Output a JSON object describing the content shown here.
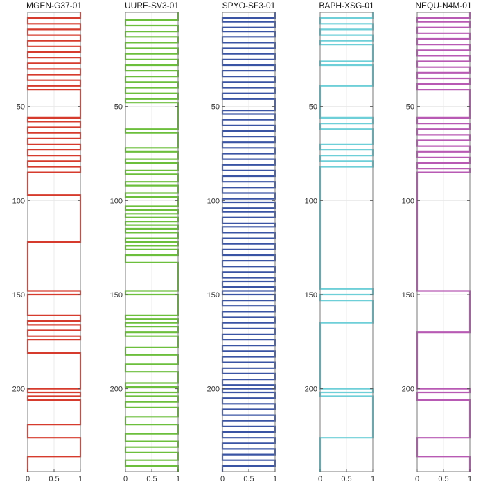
{
  "chart_data": [
    {
      "type": "line",
      "title": "MGEN-G37-01",
      "color": "#d63b2d",
      "xlim": [
        0,
        1
      ],
      "ylim": [
        0,
        244
      ],
      "y_inverted": true,
      "xticks": [
        "0",
        "0.5",
        "1"
      ],
      "yticks": [
        "50",
        "100",
        "150",
        "200"
      ],
      "segments": [
        {
          "x": 0,
          "y0": 0,
          "y1": 10
        },
        {
          "x": 0,
          "y0": 10,
          "y1": 35
        },
        {
          "x": 0,
          "y0": 35,
          "y1": 56
        },
        {
          "x": 0,
          "y0": 56,
          "y1": 97
        },
        {
          "x": 0,
          "y0": 97,
          "y1": 122
        },
        {
          "x": 0,
          "y0": 122,
          "y1": 147
        },
        {
          "x": 0,
          "y0": 147,
          "y1": 181
        },
        {
          "x": 0,
          "y0": 181,
          "y1": 200
        },
        {
          "x": 0,
          "y0": 200,
          "y1": 244
        }
      ]
    },
    {
      "type": "line",
      "title": "UURE-SV3-01",
      "color": "#6cbf3c",
      "xlim": [
        0,
        1
      ],
      "ylim": [
        0,
        244
      ],
      "y_inverted": true,
      "xticks": [
        "0",
        "0.5",
        "1"
      ],
      "yticks": [
        "50",
        "100",
        "150",
        "200"
      ],
      "segments": []
    },
    {
      "type": "line",
      "title": "SPYO-SF3-01",
      "color": "#3a54a4",
      "xlim": [
        0,
        1
      ],
      "ylim": [
        0,
        244
      ],
      "y_inverted": true,
      "xticks": [
        "0",
        "0.5",
        "1"
      ],
      "yticks": [
        "50",
        "100",
        "150",
        "200"
      ],
      "segments": []
    },
    {
      "type": "line",
      "title": "BAPH-XSG-01",
      "color": "#6ecfd8",
      "xlim": [
        0,
        1
      ],
      "ylim": [
        0,
        244
      ],
      "y_inverted": true,
      "xticks": [
        "0",
        "0.5",
        "1"
      ],
      "yticks": [
        "50",
        "100",
        "150",
        "200"
      ],
      "segments": []
    },
    {
      "type": "line",
      "title": "NEQU-N4M-01",
      "color": "#b85ab4",
      "xlim": [
        0,
        1
      ],
      "ylim": [
        0,
        244
      ],
      "y_inverted": true,
      "xticks": [
        "0",
        "0.5",
        "1"
      ],
      "yticks": [
        "50",
        "100",
        "150",
        "200"
      ],
      "segments": []
    }
  ],
  "series_steps": [
    {
      "transitions": [
        0,
        3,
        6,
        9,
        12,
        15,
        18,
        21,
        24,
        27,
        30,
        33,
        36,
        39,
        41,
        56,
        58,
        61,
        64,
        67,
        70,
        73,
        76,
        79,
        82,
        85,
        97,
        122,
        148,
        150,
        161,
        164,
        166,
        169,
        172,
        174,
        181,
        200,
        202,
        204,
        206,
        219,
        226,
        236,
        244
      ]
    },
    {
      "transitions": [
        0,
        4,
        7,
        10,
        13,
        16,
        19,
        22,
        25,
        28,
        31,
        34,
        37,
        40,
        43,
        46,
        48,
        62,
        64,
        72,
        74,
        78,
        80,
        84,
        86,
        90,
        92,
        96,
        98,
        103,
        105,
        107,
        109,
        111,
        113,
        115,
        117,
        120,
        122,
        124,
        126,
        129,
        133,
        148,
        150,
        161,
        163,
        165,
        167,
        170,
        172,
        178,
        182,
        187,
        191,
        197,
        199,
        202,
        204,
        207,
        210,
        215,
        219,
        224,
        228,
        231,
        234,
        238,
        241,
        244
      ]
    },
    {
      "transitions": [
        0,
        3,
        5,
        8,
        10,
        13,
        16,
        19,
        22,
        25,
        28,
        31,
        34,
        37,
        40,
        43,
        46,
        52,
        54,
        57,
        60,
        63,
        66,
        69,
        72,
        75,
        78,
        81,
        84,
        87,
        90,
        93,
        96,
        99,
        101,
        104,
        106,
        109,
        112,
        114,
        117,
        120,
        123,
        126,
        129,
        132,
        135,
        138,
        141,
        143,
        146,
        148,
        150,
        153,
        156,
        159,
        162,
        165,
        168,
        171,
        174,
        177,
        180,
        183,
        186,
        189,
        192,
        195,
        198,
        200,
        202,
        205,
        208,
        211,
        214,
        217,
        220,
        223,
        226,
        229,
        232,
        235,
        238,
        241,
        244
      ]
    },
    {
      "transitions": [
        0,
        3,
        6,
        9,
        12,
        15,
        17,
        26,
        28,
        39,
        56,
        59,
        62,
        70,
        73,
        76,
        79,
        82,
        147,
        150,
        153,
        165,
        200,
        202,
        204,
        226,
        244
      ]
    },
    {
      "transitions": [
        0,
        3,
        5,
        8,
        11,
        14,
        17,
        20,
        23,
        26,
        29,
        32,
        35,
        38,
        41,
        56,
        59,
        62,
        65,
        68,
        71,
        74,
        77,
        80,
        83,
        85,
        148,
        170,
        200,
        202,
        206,
        226,
        236,
        244
      ]
    }
  ]
}
